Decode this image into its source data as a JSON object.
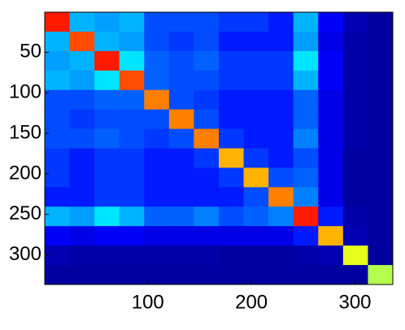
{
  "chart_data": {
    "type": "heatmap",
    "colormap": "jet",
    "clim": [
      0,
      1
    ],
    "x": [
      12.5,
      36.5,
      60.5,
      84.5,
      108.5,
      132.5,
      156.5,
      180.5,
      204.5,
      228.5,
      252.5,
      276.5,
      300.5,
      324.5
    ],
    "y": [
      12.5,
      36.5,
      60.5,
      84.5,
      108.5,
      132.5,
      156.5,
      180.5,
      204.5,
      228.5,
      252.5,
      276.5,
      300.5,
      324.5
    ],
    "values": [
      [
        0.85,
        0.3,
        0.28,
        0.3,
        0.2,
        0.2,
        0.2,
        0.18,
        0.18,
        0.15,
        0.3,
        0.12,
        0.05,
        0.03
      ],
      [
        0.3,
        0.8,
        0.3,
        0.28,
        0.2,
        0.18,
        0.2,
        0.15,
        0.15,
        0.15,
        0.28,
        0.1,
        0.04,
        0.03
      ],
      [
        0.28,
        0.3,
        0.85,
        0.35,
        0.22,
        0.2,
        0.22,
        0.18,
        0.18,
        0.18,
        0.35,
        0.12,
        0.04,
        0.03
      ],
      [
        0.3,
        0.28,
        0.35,
        0.8,
        0.22,
        0.2,
        0.2,
        0.18,
        0.18,
        0.18,
        0.3,
        0.12,
        0.04,
        0.03
      ],
      [
        0.2,
        0.2,
        0.22,
        0.22,
        0.75,
        0.2,
        0.18,
        0.15,
        0.15,
        0.15,
        0.22,
        0.1,
        0.04,
        0.03
      ],
      [
        0.2,
        0.18,
        0.2,
        0.2,
        0.2,
        0.75,
        0.2,
        0.15,
        0.15,
        0.15,
        0.22,
        0.1,
        0.04,
        0.03
      ],
      [
        0.2,
        0.2,
        0.22,
        0.2,
        0.18,
        0.2,
        0.75,
        0.18,
        0.15,
        0.15,
        0.25,
        0.1,
        0.04,
        0.03
      ],
      [
        0.18,
        0.15,
        0.18,
        0.18,
        0.15,
        0.15,
        0.18,
        0.7,
        0.18,
        0.15,
        0.2,
        0.1,
        0.03,
        0.03
      ],
      [
        0.18,
        0.15,
        0.18,
        0.18,
        0.15,
        0.15,
        0.15,
        0.18,
        0.7,
        0.2,
        0.22,
        0.1,
        0.03,
        0.03
      ],
      [
        0.15,
        0.15,
        0.18,
        0.18,
        0.15,
        0.15,
        0.15,
        0.15,
        0.2,
        0.75,
        0.25,
        0.1,
        0.03,
        0.03
      ],
      [
        0.3,
        0.28,
        0.35,
        0.3,
        0.22,
        0.22,
        0.25,
        0.2,
        0.22,
        0.25,
        0.85,
        0.15,
        0.04,
        0.03
      ],
      [
        0.12,
        0.1,
        0.12,
        0.12,
        0.1,
        0.1,
        0.1,
        0.1,
        0.1,
        0.1,
        0.15,
        0.7,
        0.05,
        0.03
      ],
      [
        0.05,
        0.04,
        0.04,
        0.04,
        0.04,
        0.04,
        0.04,
        0.03,
        0.03,
        0.03,
        0.04,
        0.05,
        0.6,
        0.03
      ],
      [
        0.03,
        0.03,
        0.03,
        0.03,
        0.03,
        0.03,
        0.03,
        0.03,
        0.03,
        0.03,
        0.03,
        0.03,
        0.03,
        0.55
      ]
    ],
    "xlim": [
      0.5,
      336.5
    ],
    "ylim": [
      0.5,
      336.5
    ],
    "xticks": [
      100,
      200,
      300
    ],
    "yticks": [
      50,
      100,
      150,
      200,
      250,
      300
    ]
  }
}
